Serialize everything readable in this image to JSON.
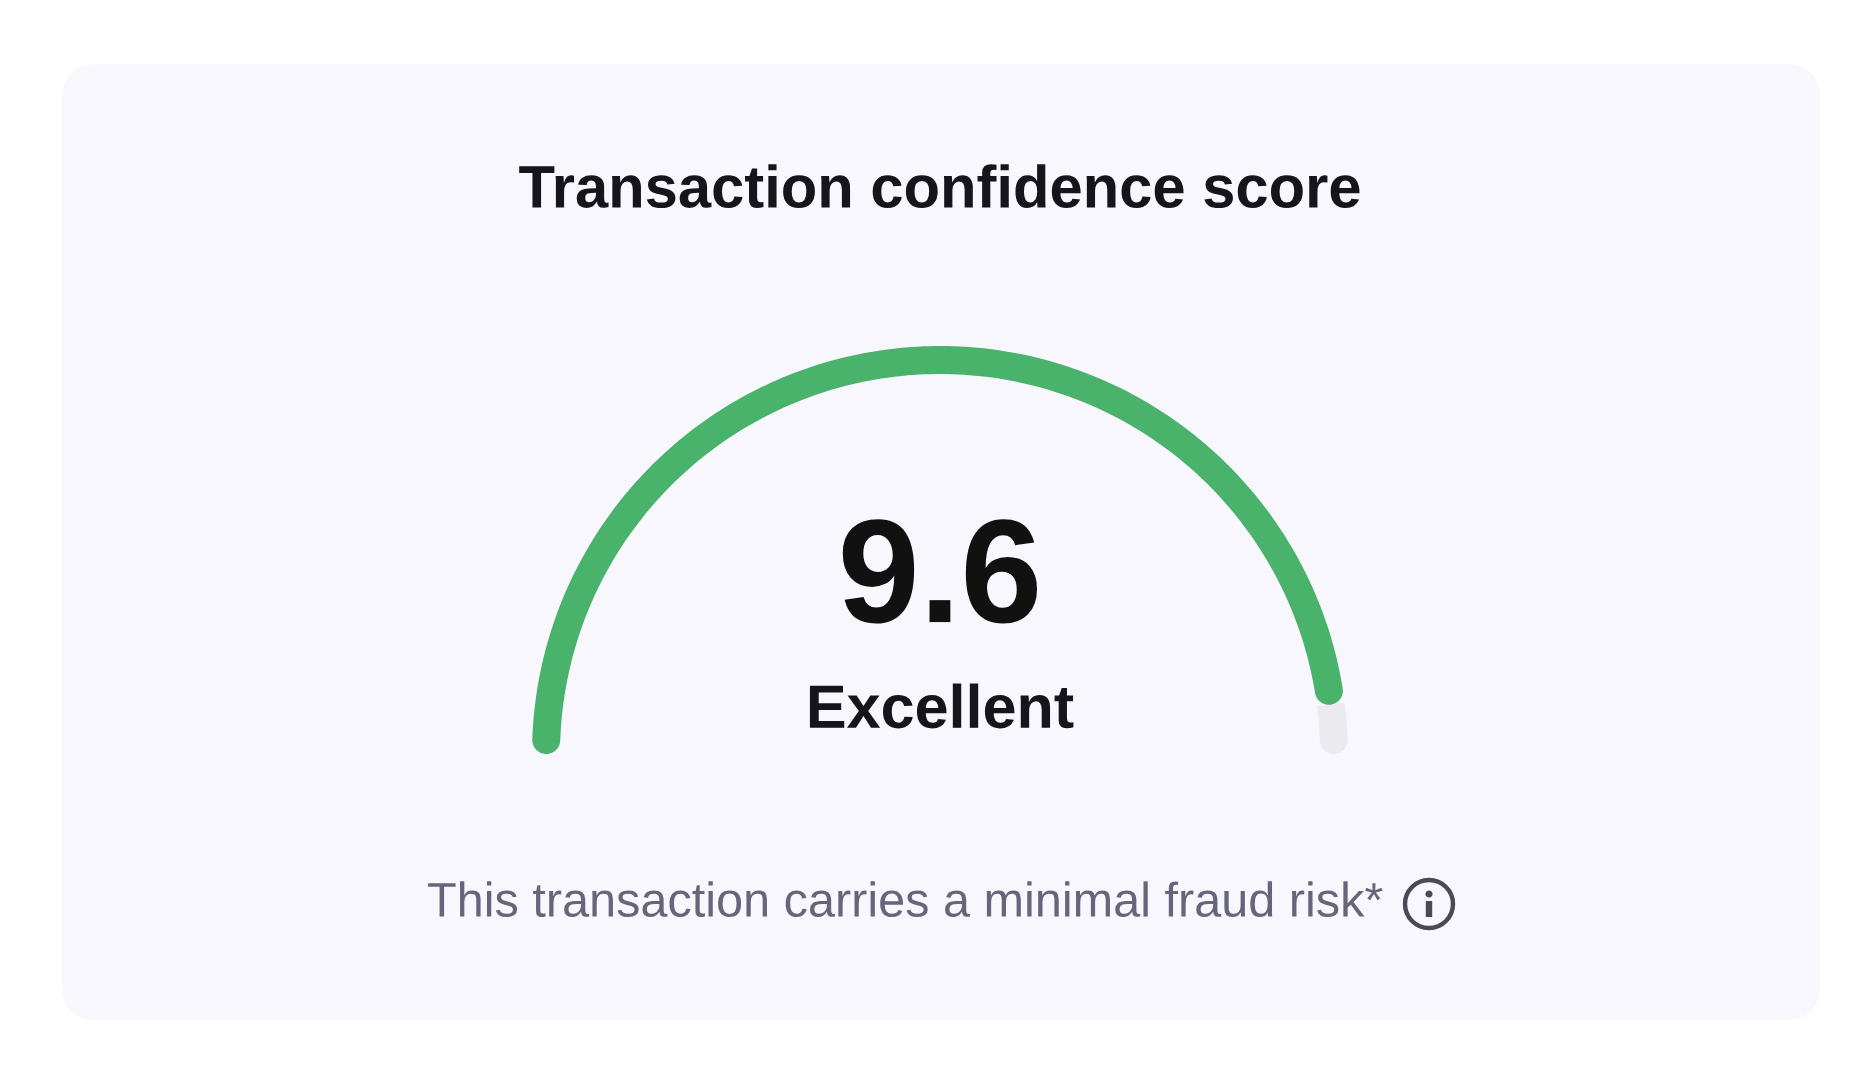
{
  "chart_data": {
    "type": "donut",
    "title": "Transaction confidence score",
    "categories": [
      null,
      null
    ],
    "values": [
      96,
      4
    ],
    "colors": [
      "#49b26b",
      "#ebebef"
    ],
    "annotations": [
      "9.6",
      "Excellent",
      "This transaction carries a minimal fraud risk*"
    ]
  }
}
